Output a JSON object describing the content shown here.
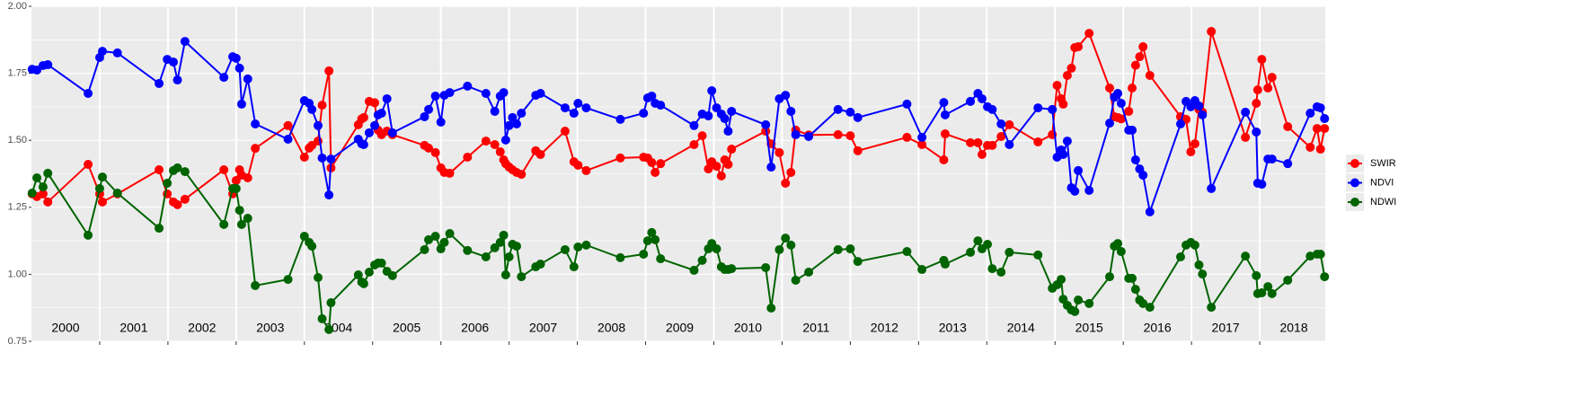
{
  "chart_data": {
    "type": "line",
    "x": [
      2000.01,
      2000.08,
      2000.17,
      2000.24,
      2000.83,
      2001.0,
      2001.04,
      2001.26,
      2001.87,
      2001.99,
      2002.08,
      2002.14,
      2002.25,
      2002.82,
      2002.95,
      2003.0,
      2003.05,
      2003.08,
      2003.17,
      2003.28,
      2003.76,
      2004.0,
      2004.07,
      2004.11,
      2004.2,
      2004.26,
      2004.36,
      2004.39,
      2004.79,
      2004.84,
      2004.87,
      2004.95,
      2005.03,
      2005.08,
      2005.13,
      2005.21,
      2005.29,
      2005.76,
      2005.82,
      2005.92,
      2006.0,
      2006.05,
      2006.13,
      2006.39,
      2006.66,
      2006.79,
      2006.87,
      2006.92,
      2006.95,
      2007.0,
      2007.05,
      2007.11,
      2007.18,
      2007.39,
      2007.46,
      2007.82,
      2007.95,
      2008.01,
      2008.13,
      2008.63,
      2008.97,
      2009.03,
      2009.09,
      2009.14,
      2009.22,
      2009.71,
      2009.83,
      2009.92,
      2009.97,
      2010.04,
      2010.11,
      2010.16,
      2010.21,
      2010.26,
      2010.76,
      2010.84,
      2010.96,
      2011.05,
      2011.13,
      2011.2,
      2011.39,
      2011.82,
      2012.0,
      2012.11,
      2012.83,
      2013.05,
      2013.37,
      2013.39,
      2013.76,
      2013.87,
      2013.93,
      2014.01,
      2014.08,
      2014.21,
      2014.33,
      2014.75,
      2014.96,
      2015.03,
      2015.09,
      2015.12,
      2015.18,
      2015.24,
      2015.29,
      2015.34,
      2015.5,
      2015.8,
      2015.87,
      2015.92,
      2015.97,
      2016.08,
      2016.13,
      2016.18,
      2016.24,
      2016.29,
      2016.39,
      2016.84,
      2016.92,
      2016.99,
      2017.05,
      2017.11,
      2017.16,
      2017.29,
      2017.79,
      2017.95,
      2017.97,
      2018.03,
      2018.12,
      2018.18,
      2018.41,
      2018.74,
      2018.84,
      2018.89,
      2018.95
    ],
    "series": [
      {
        "name": "SWIR",
        "color": "#ff0000",
        "values": [
          1.3,
          1.29,
          1.3,
          1.27,
          1.41,
          1.3,
          1.27,
          1.3,
          1.39,
          1.3,
          1.27,
          1.26,
          1.28,
          1.39,
          1.3,
          1.35,
          1.39,
          1.37,
          1.36,
          1.47,
          1.555,
          1.437,
          1.471,
          1.481,
          1.497,
          1.631,
          1.759,
          1.397,
          1.558,
          1.58,
          1.585,
          1.645,
          1.64,
          1.538,
          1.521,
          1.534,
          1.521,
          1.481,
          1.471,
          1.454,
          1.397,
          1.38,
          1.377,
          1.437,
          1.497,
          1.484,
          1.457,
          1.427,
          1.413,
          1.4,
          1.39,
          1.38,
          1.373,
          1.461,
          1.447,
          1.534,
          1.42,
          1.407,
          1.387,
          1.434,
          1.437,
          1.434,
          1.417,
          1.38,
          1.413,
          1.484,
          1.517,
          1.393,
          1.42,
          1.403,
          1.367,
          1.427,
          1.41,
          1.467,
          1.534,
          1.487,
          1.454,
          1.34,
          1.38,
          1.538,
          1.52,
          1.521,
          1.517,
          1.461,
          1.511,
          1.484,
          1.427,
          1.524,
          1.491,
          1.491,
          1.447,
          1.481,
          1.481,
          1.514,
          1.558,
          1.494,
          1.521,
          1.705,
          1.655,
          1.635,
          1.742,
          1.769,
          1.846,
          1.849,
          1.899,
          1.695,
          1.588,
          1.585,
          1.58,
          1.608,
          1.695,
          1.78,
          1.812,
          1.849,
          1.742,
          1.588,
          1.578,
          1.457,
          1.487,
          1.615,
          1.605,
          1.906,
          1.511,
          1.638,
          1.688,
          1.802,
          1.695,
          1.735,
          1.551,
          1.474,
          1.544,
          1.467,
          1.544
        ]
      },
      {
        "name": "NDVI",
        "color": "#0000ff",
        "values": [
          1.765,
          1.762,
          1.779,
          1.782,
          1.675,
          1.809,
          1.832,
          1.826,
          1.712,
          1.802,
          1.792,
          1.725,
          1.869,
          1.735,
          1.812,
          1.806,
          1.769,
          1.635,
          1.729,
          1.561,
          1.504,
          1.648,
          1.638,
          1.615,
          1.555,
          1.434,
          1.296,
          1.43,
          1.504,
          1.487,
          1.484,
          1.528,
          1.555,
          1.595,
          1.601,
          1.655,
          1.528,
          1.588,
          1.615,
          1.665,
          1.568,
          1.668,
          1.678,
          1.702,
          1.675,
          1.608,
          1.665,
          1.678,
          1.501,
          1.555,
          1.585,
          1.561,
          1.601,
          1.668,
          1.675,
          1.621,
          1.601,
          1.638,
          1.621,
          1.578,
          1.601,
          1.658,
          1.665,
          1.638,
          1.631,
          1.555,
          1.598,
          1.591,
          1.685,
          1.621,
          1.598,
          1.581,
          1.534,
          1.608,
          1.558,
          1.4,
          1.655,
          1.668,
          1.608,
          1.521,
          1.514,
          1.615,
          1.605,
          1.585,
          1.635,
          1.511,
          1.641,
          1.595,
          1.645,
          1.675,
          1.655,
          1.625,
          1.615,
          1.561,
          1.484,
          1.621,
          1.615,
          1.437,
          1.464,
          1.447,
          1.497,
          1.323,
          1.31,
          1.387,
          1.313,
          1.564,
          1.661,
          1.675,
          1.638,
          1.538,
          1.538,
          1.427,
          1.393,
          1.37,
          1.233,
          1.561,
          1.645,
          1.625,
          1.648,
          1.628,
          1.595,
          1.32,
          1.605,
          1.531,
          1.34,
          1.336,
          1.43,
          1.43,
          1.413,
          1.601,
          1.625,
          1.621,
          1.581
        ]
      },
      {
        "name": "NDWI",
        "color": "#006400",
        "values": [
          1.303,
          1.36,
          1.326,
          1.377,
          1.146,
          1.32,
          1.363,
          1.303,
          1.172,
          1.34,
          1.387,
          1.397,
          1.383,
          1.186,
          1.32,
          1.32,
          1.239,
          1.186,
          1.209,
          0.958,
          0.981,
          1.142,
          1.119,
          1.105,
          0.988,
          0.834,
          0.794,
          0.894,
          0.998,
          0.971,
          0.965,
          1.008,
          1.035,
          1.042,
          1.042,
          1.011,
          0.995,
          1.092,
          1.129,
          1.142,
          1.095,
          1.119,
          1.152,
          1.089,
          1.065,
          1.099,
          1.119,
          1.146,
          0.998,
          1.065,
          1.112,
          1.105,
          0.991,
          1.028,
          1.038,
          1.092,
          1.028,
          1.102,
          1.109,
          1.062,
          1.075,
          1.125,
          1.156,
          1.129,
          1.058,
          1.015,
          1.052,
          1.095,
          1.115,
          1.095,
          1.028,
          1.018,
          1.018,
          1.021,
          1.025,
          0.874,
          1.092,
          1.135,
          1.109,
          0.978,
          1.008,
          1.092,
          1.095,
          1.048,
          1.085,
          1.018,
          1.052,
          1.038,
          1.082,
          1.125,
          1.095,
          1.112,
          1.021,
          1.008,
          1.082,
          1.072,
          0.948,
          0.961,
          0.981,
          0.907,
          0.884,
          0.867,
          0.861,
          0.904,
          0.891,
          0.991,
          1.105,
          1.115,
          1.085,
          0.985,
          0.985,
          0.944,
          0.904,
          0.891,
          0.877,
          1.065,
          1.109,
          1.119,
          1.109,
          1.035,
          1.001,
          0.877,
          1.068,
          0.995,
          0.928,
          0.931,
          0.954,
          0.928,
          0.978,
          1.068,
          1.075,
          1.075,
          0.991
        ]
      }
    ],
    "xlim": [
      2000,
      2018.96
    ],
    "xticks": [
      {
        "value": 2000.5,
        "label": "2000"
      },
      {
        "value": 2001.5,
        "label": "2001"
      },
      {
        "value": 2002.5,
        "label": "2002"
      },
      {
        "value": 2003.5,
        "label": "2003"
      },
      {
        "value": 2004.5,
        "label": "2004"
      },
      {
        "value": 2005.5,
        "label": "2005"
      },
      {
        "value": 2006.5,
        "label": "2006"
      },
      {
        "value": 2007.5,
        "label": "2007"
      },
      {
        "value": 2008.5,
        "label": "2008"
      },
      {
        "value": 2009.5,
        "label": "2009"
      },
      {
        "value": 2010.5,
        "label": "2010"
      },
      {
        "value": 2011.5,
        "label": "2011"
      },
      {
        "value": 2012.5,
        "label": "2012"
      },
      {
        "value": 2013.5,
        "label": "2013"
      },
      {
        "value": 2014.5,
        "label": "2014"
      },
      {
        "value": 2015.5,
        "label": "2015"
      },
      {
        "value": 2016.5,
        "label": "2016"
      },
      {
        "value": 2017.5,
        "label": "2017"
      },
      {
        "value": 2018.5,
        "label": "2018"
      }
    ],
    "xgrid": [
      2001,
      2002,
      2003,
      2004,
      2005,
      2006,
      2007,
      2008,
      2009,
      2010,
      2011,
      2012,
      2013,
      2014,
      2015,
      2016,
      2017,
      2018
    ],
    "ylim": [
      0.75,
      2.0
    ],
    "yticks": [
      {
        "value": 0.75,
        "label": "0.75"
      },
      {
        "value": 1.0,
        "label": "1.00"
      },
      {
        "value": 1.25,
        "label": "1.25"
      },
      {
        "value": 1.5,
        "label": "1.50"
      },
      {
        "value": 1.75,
        "label": "1.75"
      },
      {
        "value": 2.0,
        "label": "2.00"
      }
    ],
    "grid": true,
    "legend": "right"
  }
}
